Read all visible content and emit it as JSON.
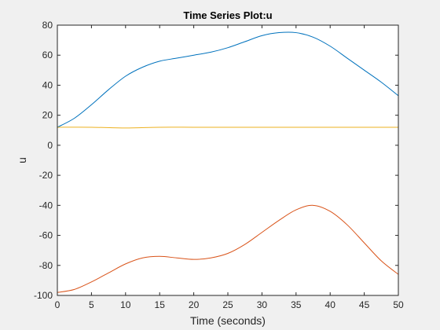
{
  "chart_data": {
    "type": "line",
    "title": "Time Series Plot:u",
    "xlabel": "Time (seconds)",
    "ylabel": "u",
    "xlim": [
      0,
      50
    ],
    "ylim": [
      -100,
      80
    ],
    "x_ticks": [
      0,
      5,
      10,
      15,
      20,
      25,
      30,
      35,
      40,
      45,
      50
    ],
    "y_ticks": [
      -100,
      -80,
      -60,
      -40,
      -20,
      0,
      20,
      40,
      60,
      80
    ],
    "grid": false,
    "box": true,
    "series": [
      {
        "color": "#0072bd",
        "x": [
          0,
          2.5,
          5,
          7.5,
          10,
          12.5,
          15,
          17.5,
          20,
          22.5,
          25,
          27.5,
          30,
          32.5,
          35,
          37.5,
          40,
          42.5,
          45,
          47.5,
          50
        ],
        "y": [
          12,
          18,
          27,
          37,
          46,
          52,
          56,
          58,
          60,
          62,
          65,
          69,
          73,
          75,
          75,
          72,
          66,
          58,
          50,
          42,
          33
        ]
      },
      {
        "color": "#d95319",
        "x": [
          0,
          2.5,
          5,
          7.5,
          10,
          12.5,
          15,
          17.5,
          20,
          22.5,
          25,
          27.5,
          30,
          32.5,
          35,
          37.5,
          40,
          42.5,
          45,
          47.5,
          50
        ],
        "y": [
          -98,
          -96,
          -91,
          -85,
          -79,
          -75,
          -74,
          -75,
          -76,
          -75,
          -72,
          -66,
          -58,
          -50,
          -43,
          -40,
          -44,
          -53,
          -65,
          -77,
          -86
        ]
      },
      {
        "color": "#edb120",
        "x": [
          0,
          5,
          10,
          15,
          20,
          25,
          30,
          35,
          40,
          45,
          50
        ],
        "y": [
          12,
          12,
          11.5,
          12,
          12,
          12,
          12,
          12,
          12,
          12,
          12
        ]
      }
    ]
  }
}
